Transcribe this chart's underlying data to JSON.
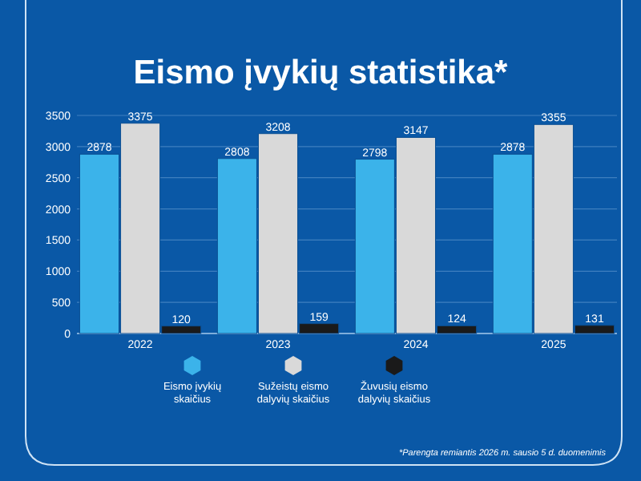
{
  "chart_data": {
    "type": "bar",
    "title": "Eismo įvykių statistika*",
    "categories": [
      "2022",
      "2023",
      "2024",
      "2025"
    ],
    "series": [
      {
        "name": "Eismo įvykių skaičius",
        "color": "#3bb3ea",
        "values": [
          2878,
          2808,
          2798,
          2878
        ]
      },
      {
        "name": "Sužeistų eismo dalyvių skaičius",
        "color": "#d9d9d9",
        "values": [
          3375,
          3208,
          3147,
          3355
        ]
      },
      {
        "name": "Žuvusių eismo dalyvių skaičius",
        "color": "#1a1a1a",
        "values": [
          120,
          159,
          124,
          131
        ]
      }
    ],
    "ylim": [
      0,
      3500
    ],
    "yticks": [
      0,
      500,
      1000,
      1500,
      2000,
      2500,
      3000,
      3500
    ],
    "grid": "y",
    "data_labels": true,
    "legend": "bottom",
    "annotations": [
      "*Parengta remiantis 2026 m. sausio 5 d. duomenimis"
    ]
  }
}
